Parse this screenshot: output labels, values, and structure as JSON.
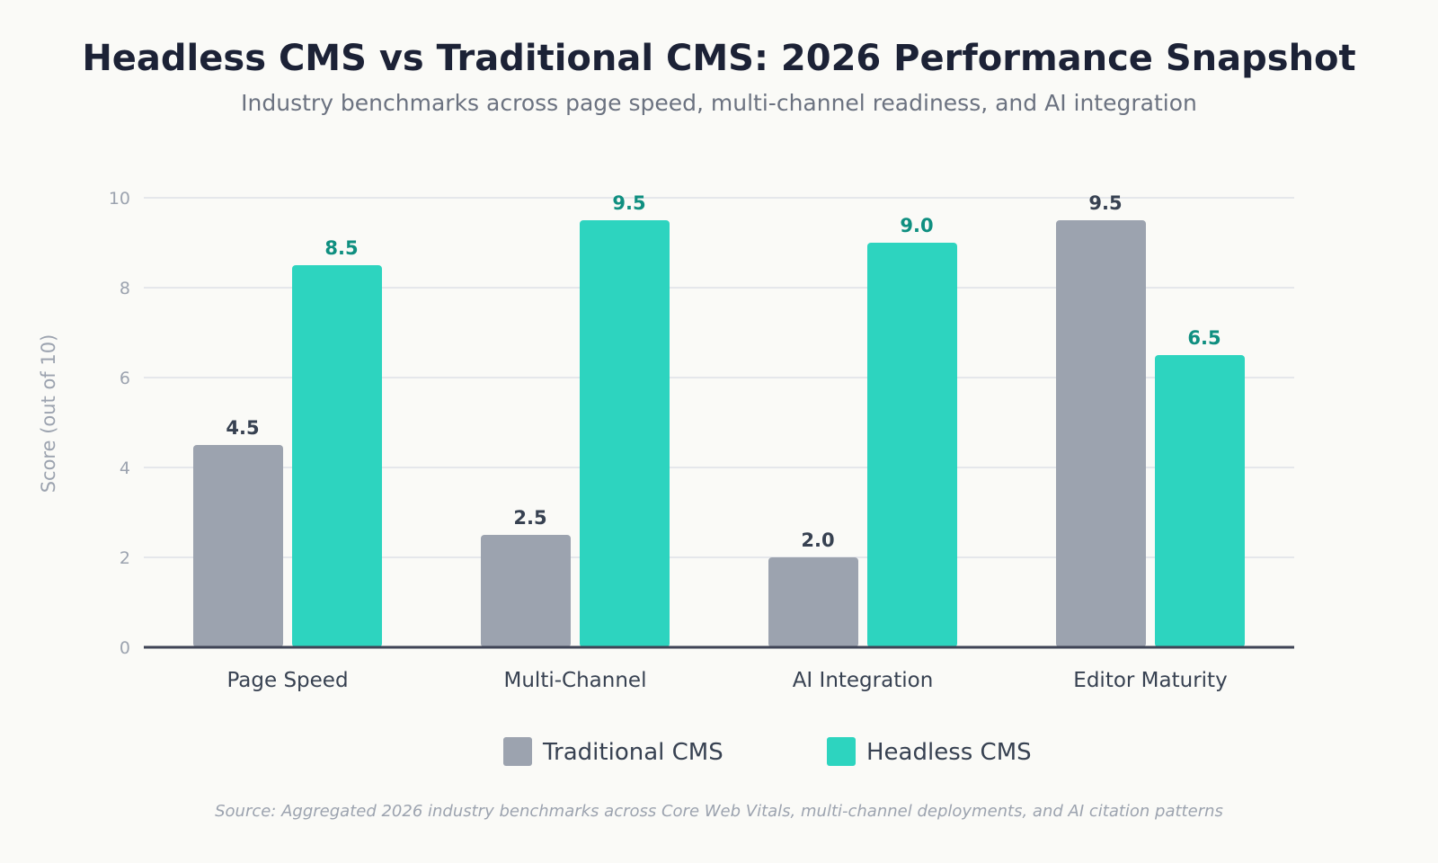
{
  "chart_data": {
    "type": "bar",
    "title": "Headless CMS vs Traditional CMS: 2026 Performance Snapshot",
    "subtitle": "Industry benchmarks across page speed, multi-channel readiness, and AI integration",
    "ylabel": "Score (out of 10)",
    "xlabel": "",
    "ylim": [
      0,
      10
    ],
    "yticks": [
      0,
      2,
      4,
      6,
      8,
      10
    ],
    "grid": true,
    "legend_position": "bottom-center",
    "categories": [
      "Page Speed",
      "Multi-Channel",
      "AI Integration",
      "Editor Maturity"
    ],
    "series": [
      {
        "name": "Traditional CMS",
        "values": [
          4.5,
          2.5,
          2.0,
          9.5
        ],
        "labels": [
          "4.5",
          "2.5",
          "2.0",
          "9.5"
        ],
        "color": "#9ca3af",
        "label_color": "#374151"
      },
      {
        "name": "Headless CMS",
        "values": [
          8.5,
          9.5,
          9.0,
          6.5
        ],
        "labels": [
          "8.5",
          "9.5",
          "9.0",
          "6.5"
        ],
        "color": "#2dd4bf",
        "label_color": "#0f8f80"
      }
    ],
    "source": "Source: Aggregated 2026 industry benchmarks across Core Web Vitals, multi-channel deployments, and AI citation patterns"
  },
  "colors": {
    "background": "#fafaf7",
    "gridline": "#e5e7eb",
    "axis": "#3f4456",
    "tick_label": "#9ca3af",
    "category_label": "#374151",
    "legend_label": "#374151"
  }
}
